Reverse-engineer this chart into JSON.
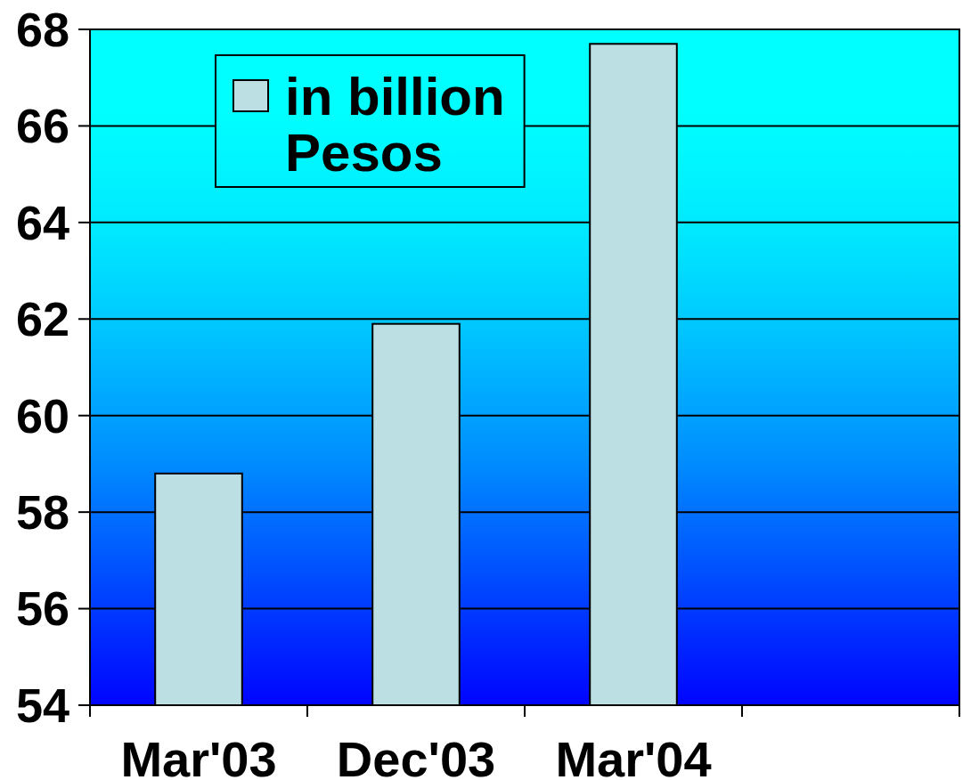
{
  "chart_data": {
    "type": "bar",
    "categories": [
      "Mar'03",
      "Dec'03",
      "Mar'04",
      null
    ],
    "series": [
      {
        "name": "in billion Pesos",
        "color": "#bbdfe2",
        "values": [
          58.8,
          61.9,
          67.7,
          null
        ]
      }
    ],
    "ylim": [
      54,
      68
    ],
    "yticks": [
      54,
      56,
      58,
      60,
      62,
      64,
      66,
      68
    ],
    "grid": "y",
    "legend": "top left"
  }
}
